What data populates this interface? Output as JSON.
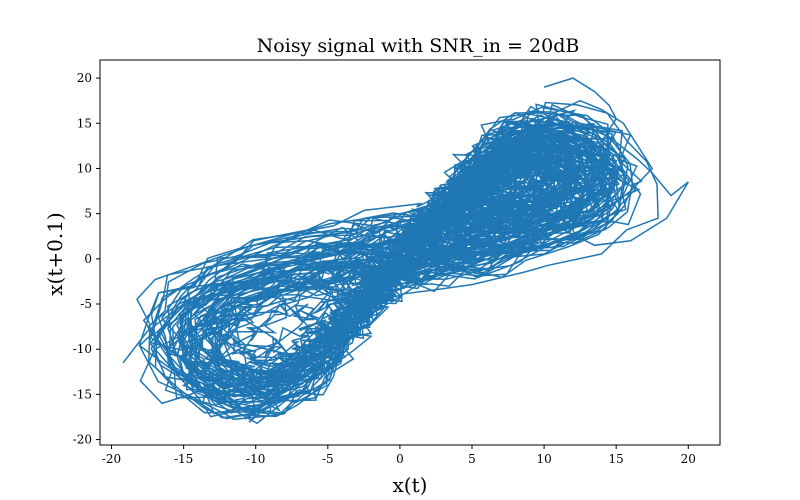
{
  "chart_data": {
    "type": "line",
    "title": "Noisy signal with SNR_in = 20dB",
    "xlabel": "x(t)",
    "ylabel": "x(t+0.1)",
    "xlim": [
      -20.8,
      22.2
    ],
    "ylim": [
      -20.6,
      22.0
    ],
    "xticks": [
      -20,
      -15,
      -10,
      -5,
      0,
      5,
      10,
      15,
      20
    ],
    "yticks": [
      -20,
      -15,
      -10,
      -5,
      0,
      5,
      10,
      15,
      20
    ],
    "xtick_labels": [
      "-20",
      "-15",
      "-10",
      "-5",
      "0",
      "5",
      "10",
      "15",
      "20"
    ],
    "ytick_labels": [
      "-20",
      "-15",
      "-10",
      "-5",
      "0",
      "5",
      "10",
      "15",
      "20"
    ],
    "grid": false,
    "series": [
      {
        "color": "#1f77b4",
        "description_points": "phase-space trajectory of a noisy Lorenz-like signal, dense double-lobe attractor",
        "x": [
          -19.2,
          -17.5,
          -15.0,
          -13.2,
          -11.0,
          -9.0,
          -7.2,
          -5.5,
          -3.0,
          -1.0,
          0.5,
          2.0,
          4.0,
          6.5,
          8.5,
          10.5,
          12.5,
          14.5,
          16.5,
          17.5,
          18.8,
          20.0,
          18.5,
          16.0,
          13.5,
          11.0,
          8.5,
          6.0,
          4.0,
          2.0,
          0.0,
          -2.0,
          -4.5,
          -7.0,
          -9.5,
          -12.0,
          -14.5,
          -16.5,
          -18.0,
          -17.0,
          -14.0,
          -11.0,
          -8.5,
          -10.0,
          -12.5,
          -15.0,
          -13.0,
          -10.5,
          -8.0,
          -6.5
        ],
        "y": [
          -11.5,
          -8.0,
          -5.0,
          -3.0,
          -2.5,
          -3.5,
          -6.0,
          -9.0,
          -7.0,
          -3.0,
          0.5,
          3.0,
          5.5,
          8.5,
          11.0,
          13.5,
          14.8,
          13.5,
          11.0,
          9.5,
          7.0,
          8.5,
          4.5,
          2.0,
          1.5,
          3.5,
          6.0,
          7.5,
          4.5,
          2.5,
          1.0,
          -1.5,
          -3.0,
          -7.5,
          -10.5,
          -13.0,
          -15.0,
          -16.0,
          -13.5,
          -10.0,
          -7.5,
          -6.5,
          -9.0,
          -13.0,
          -15.5,
          -14.0,
          -11.5,
          -9.5,
          -10.5,
          -12.0
        ],
        "x2": [
          10.0,
          12.0,
          13.5,
          14.5,
          15.0,
          14.0,
          12.0,
          10.0,
          8.5,
          9.0,
          10.5,
          12.5,
          14.0,
          15.5,
          16.5,
          17.5,
          16.0,
          14.0,
          12.0,
          10.0
        ],
        "y2": [
          19.0,
          20.0,
          18.5,
          17.0,
          15.5,
          13.0,
          11.5,
          10.5,
          12.0,
          14.5,
          16.0,
          17.5,
          16.5,
          15.0,
          12.5,
          10.0,
          7.5,
          5.0,
          3.5,
          2.5
        ]
      }
    ]
  }
}
